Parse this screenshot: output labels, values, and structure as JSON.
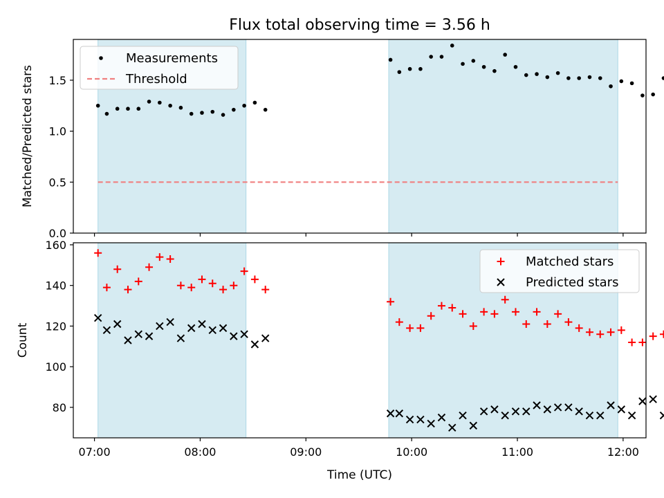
{
  "chart_data": {
    "title": "Flux total observing time = 3.56 h",
    "xlabel": "Time (UTC)",
    "x_ticks": [
      "07:00",
      "08:00",
      "09:00",
      "10:00",
      "11:00",
      "12:00"
    ],
    "xlim": [
      "06:48",
      "12:13"
    ],
    "shaded_intervals": [
      [
        "07:02",
        "08:26"
      ],
      [
        "09:47",
        "11:57"
      ]
    ],
    "shade_color": "#add8e6",
    "panels": [
      {
        "type": "scatter",
        "ylabel": "Matched/Predicted stars",
        "ylim": [
          0,
          1.9
        ],
        "y_ticks": [
          "0.0",
          "0.5",
          "1.0",
          "1.5"
        ],
        "legend_position": "top-left",
        "series": [
          {
            "name": "Measurements",
            "marker": "dot",
            "color": "#000000",
            "x": [
              "07:02",
              "07:07",
              "07:13",
              "07:19",
              "07:25",
              "07:31",
              "07:37",
              "07:43",
              "07:49",
              "07:55",
              "08:01",
              "08:07",
              "08:13",
              "08:19",
              "08:25",
              "08:31",
              "08:37",
              "09:48",
              "09:53",
              "09:59",
              "10:05",
              "10:11",
              "10:17",
              "10:23",
              "10:29",
              "10:35",
              "10:41",
              "10:47",
              "10:53",
              "10:59",
              "11:05",
              "11:11",
              "11:17",
              "11:23",
              "11:29",
              "11:35",
              "11:41",
              "11:47",
              "11:53",
              "11:59",
              "12:05",
              "12:11",
              "12:17",
              "12:23"
            ],
            "y": [
              1.25,
              1.17,
              1.22,
              1.22,
              1.22,
              1.29,
              1.28,
              1.25,
              1.23,
              1.17,
              1.18,
              1.19,
              1.16,
              1.21,
              1.25,
              1.28,
              1.21,
              1.7,
              1.58,
              1.61,
              1.61,
              1.73,
              1.73,
              1.84,
              1.66,
              1.69,
              1.63,
              1.59,
              1.75,
              1.63,
              1.55,
              1.56,
              1.53,
              1.57,
              1.52,
              1.52,
              1.53,
              1.52,
              1.44,
              1.49,
              1.47,
              1.35,
              1.36,
              1.52
            ]
          },
          {
            "name": "Threshold",
            "line": "dashed",
            "color": "#f08080",
            "x": [
              "07:02",
              "11:57"
            ],
            "y": [
              0.5,
              0.5
            ]
          }
        ]
      },
      {
        "type": "scatter",
        "ylabel": "Count",
        "ylim": [
          65,
          161
        ],
        "y_ticks": [
          "80",
          "100",
          "120",
          "140",
          "160"
        ],
        "legend_position": "top-right",
        "series": [
          {
            "name": "Matched stars",
            "marker": "plus",
            "color": "#ff0000",
            "x": [
              "07:02",
              "07:07",
              "07:13",
              "07:19",
              "07:25",
              "07:31",
              "07:37",
              "07:43",
              "07:49",
              "07:55",
              "08:01",
              "08:07",
              "08:13",
              "08:19",
              "08:25",
              "08:31",
              "08:37",
              "09:48",
              "09:53",
              "09:59",
              "10:05",
              "10:11",
              "10:17",
              "10:23",
              "10:29",
              "10:35",
              "10:41",
              "10:47",
              "10:53",
              "10:59",
              "11:05",
              "11:11",
              "11:17",
              "11:23",
              "11:29",
              "11:35",
              "11:41",
              "11:47",
              "11:53",
              "11:59",
              "12:05",
              "12:11",
              "12:17",
              "12:23"
            ],
            "y": [
              156,
              139,
              148,
              138,
              142,
              149,
              154,
              153,
              140,
              139,
              143,
              141,
              138,
              140,
              147,
              143,
              138,
              132,
              122,
              119,
              119,
              125,
              130,
              129,
              126,
              120,
              127,
              126,
              133,
              127,
              121,
              127,
              121,
              126,
              122,
              119,
              117,
              116,
              117,
              118,
              112,
              112,
              115,
              116
            ]
          },
          {
            "name": "Predicted stars",
            "marker": "x",
            "color": "#000000",
            "x": [
              "07:02",
              "07:07",
              "07:13",
              "07:19",
              "07:25",
              "07:31",
              "07:37",
              "07:43",
              "07:49",
              "07:55",
              "08:01",
              "08:07",
              "08:13",
              "08:19",
              "08:25",
              "08:31",
              "08:37",
              "09:48",
              "09:53",
              "09:59",
              "10:05",
              "10:11",
              "10:17",
              "10:23",
              "10:29",
              "10:35",
              "10:41",
              "10:47",
              "10:53",
              "10:59",
              "11:05",
              "11:11",
              "11:17",
              "11:23",
              "11:29",
              "11:35",
              "11:41",
              "11:47",
              "11:53",
              "11:59",
              "12:05",
              "12:11",
              "12:17",
              "12:23"
            ],
            "y": [
              124,
              118,
              121,
              113,
              116,
              115,
              120,
              122,
              114,
              119,
              121,
              118,
              119,
              115,
              116,
              111,
              114,
              77,
              77,
              74,
              74,
              72,
              75,
              70,
              76,
              71,
              78,
              79,
              76,
              78,
              78,
              81,
              79,
              80,
              80,
              78,
              76,
              76,
              81,
              79,
              76,
              83,
              84,
              76
            ]
          }
        ]
      }
    ]
  }
}
